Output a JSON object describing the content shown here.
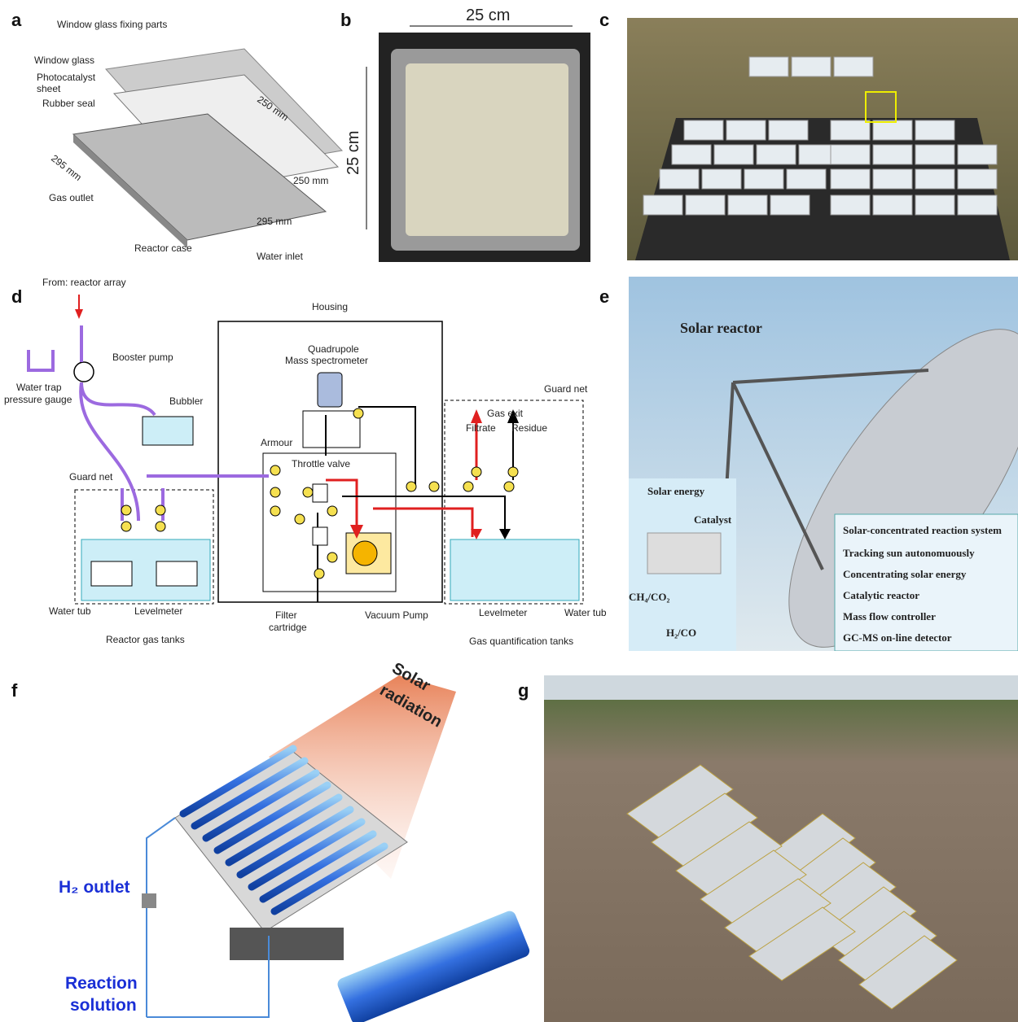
{
  "panels": {
    "a": {
      "label": "a",
      "parts": [
        "Window glass fixing parts",
        "Window glass",
        "Photocatalyst",
        "sheet",
        "Rubber seal",
        "Gas outlet",
        "Reactor case",
        "Water inlet"
      ],
      "dims": [
        "250 mm",
        "250 mm",
        "295 mm",
        "295 mm"
      ]
    },
    "b": {
      "label": "b",
      "dims": [
        "25 cm",
        "25 cm"
      ]
    },
    "c": {
      "label": "c"
    },
    "d": {
      "label": "d",
      "texts": [
        "From: reactor array",
        "Housing",
        "Booster pump",
        "Water trap",
        "pressure gauge",
        "Bubbler",
        "Quadrupole",
        "Mass spectrometer",
        "Guard net",
        "Gas exit",
        "Filtrate",
        "Residue",
        "Armour",
        "Throttle valve",
        "Guard net",
        "Water tub",
        "Levelmeter",
        "Reactor gas tanks",
        "Filter",
        "cartridge",
        "Vacuum Pump",
        "Levelmeter",
        "Gas quantification tanks",
        "Water tub"
      ]
    },
    "e": {
      "label": "e",
      "title": "Solar reactor",
      "inset": [
        "Solar energy",
        "Catalyst",
        "CH₄/CO₂",
        "H₂/CO"
      ],
      "box_title": "Solar-concentrated reaction system",
      "bullets": [
        "Tracking sun autonomuously",
        "Concentrating solar energy",
        "Catalytic reactor",
        "Mass flow controller",
        "GC-MS on-line detector"
      ]
    },
    "f": {
      "label": "f",
      "texts": [
        "Solar",
        "radiation",
        "H₂ outlet",
        "Reaction",
        "solution"
      ]
    },
    "g": {
      "label": "g"
    }
  }
}
